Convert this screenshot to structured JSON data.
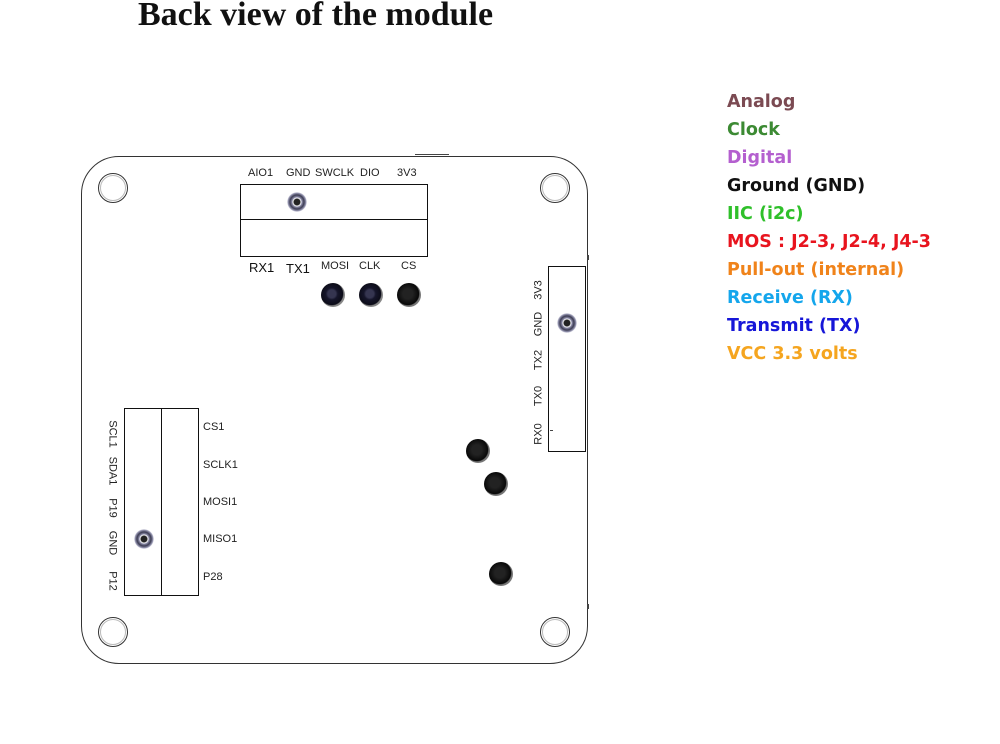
{
  "title": "Back view of the module",
  "top_header": {
    "labels_above": [
      "AIO1",
      "GND",
      "SWCLK",
      "DIO",
      "3V3"
    ],
    "labels_below": [
      "RX1",
      "TX1",
      "MOSI",
      "CLK",
      "CS"
    ]
  },
  "right_header": {
    "labels": [
      "3V3",
      "GND",
      "TX2",
      "TX0",
      "RX0"
    ]
  },
  "left_header": {
    "labels_left": [
      "SCL1",
      "SDA1",
      "P19",
      "GND",
      "P12"
    ],
    "labels_right": [
      "CS1",
      "SCLK1",
      "MOSI1",
      "MISO1",
      "P28"
    ]
  },
  "legend": [
    {
      "label": "Analog",
      "color": "#7b4a52"
    },
    {
      "label": "Clock",
      "color": "#3c8a33"
    },
    {
      "label": "Digital",
      "color": "#b45fcf"
    },
    {
      "label": "Ground (GND)",
      "color": "#111111"
    },
    {
      "label": "IIC (i2c)",
      "color": "#2fc02a"
    },
    {
      "label": "MOS : J2-3, J2-4, J4-3",
      "color": "#e8141e"
    },
    {
      "label": "Pull-out (internal)",
      "color": "#f0831a"
    },
    {
      "label": "Receive (RX)",
      "color": "#14a6ec"
    },
    {
      "label": "Transmit (TX)",
      "color": "#1616d8"
    },
    {
      "label": "VCC 3.3 volts",
      "color": "#f5a51f"
    }
  ]
}
